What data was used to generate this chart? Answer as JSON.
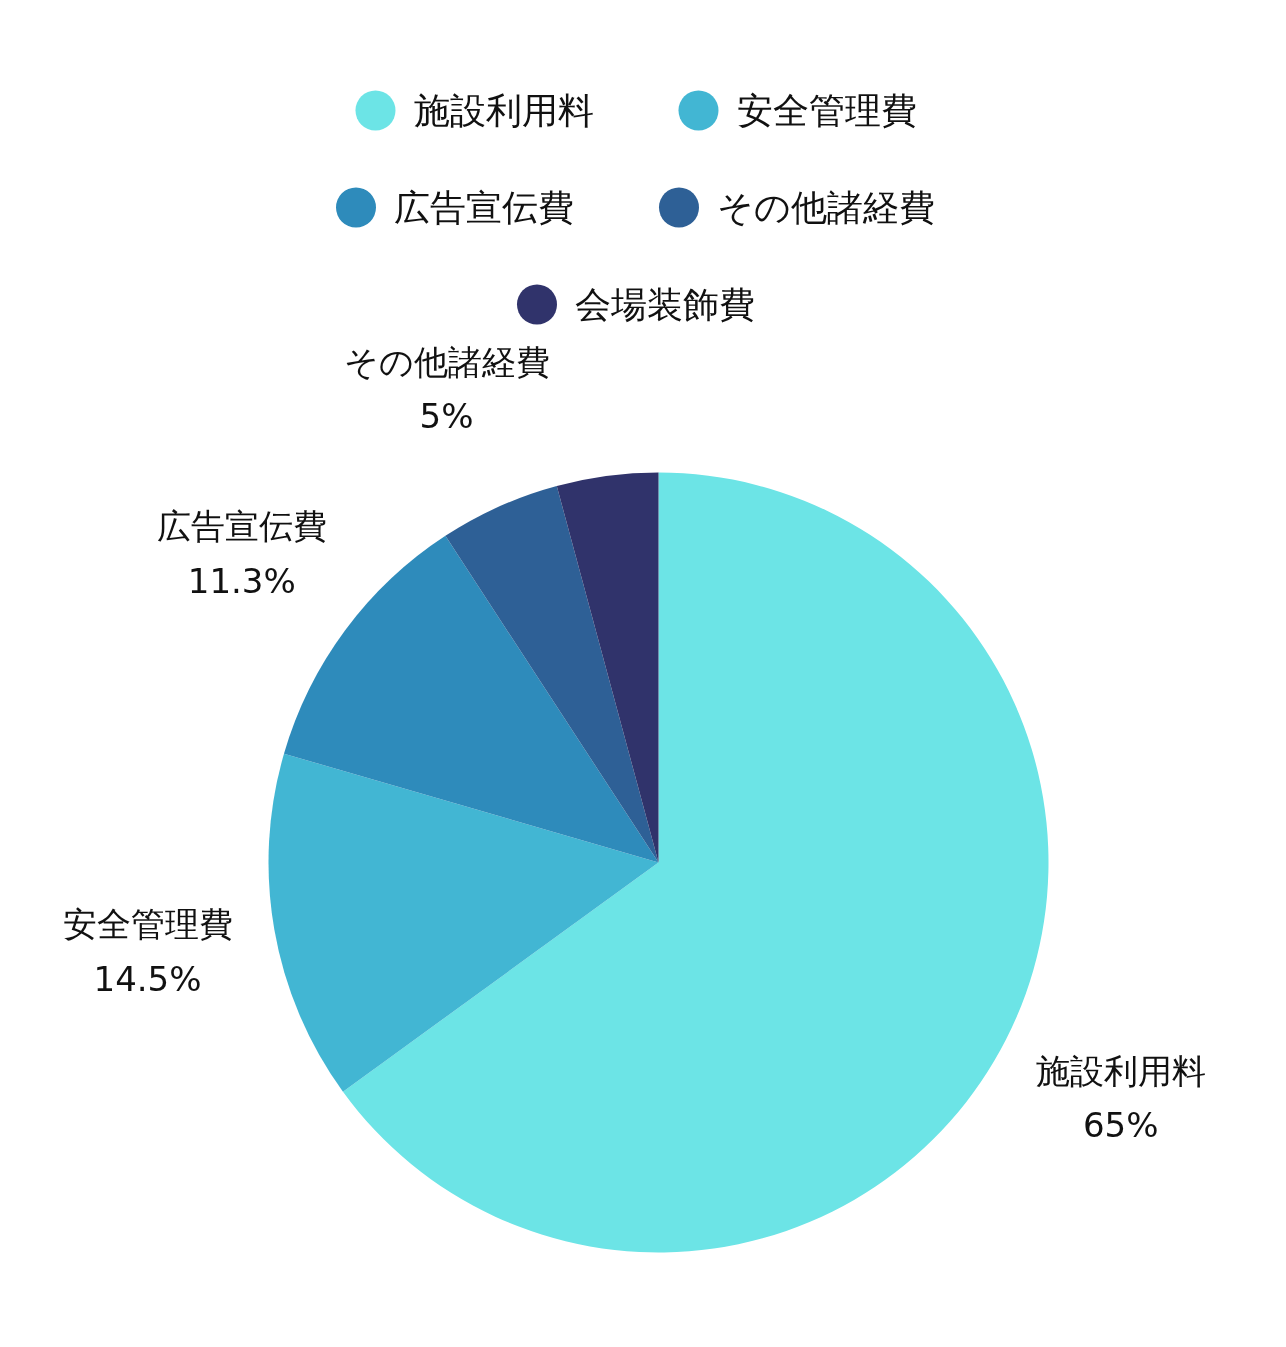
{
  "chart_data": {
    "type": "pie",
    "categories": [
      "施設利用料",
      "安全管理費",
      "広告宣伝費",
      "その他諸経費",
      "会場装飾費"
    ],
    "values": [
      65,
      14.5,
      11.3,
      5,
      4.2
    ],
    "colors": [
      "#6ce4e6",
      "#42b6d3",
      "#2e8bbb",
      "#2e6096",
      "#30336b"
    ],
    "value_labels": [
      "65%",
      "14.5%",
      "11.3%",
      "5%",
      null
    ],
    "legend": "top"
  }
}
